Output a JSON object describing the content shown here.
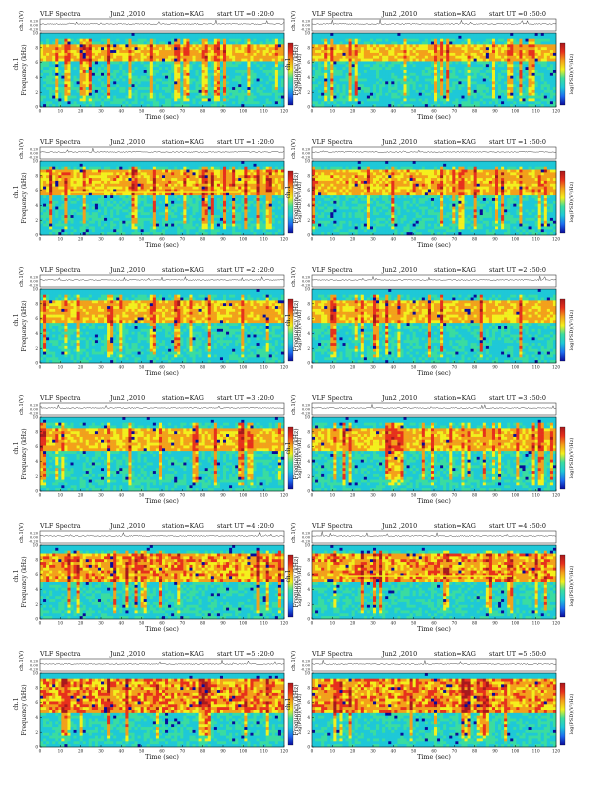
{
  "figure": {
    "panel_title_prefix": "VLF Spectra",
    "date": "Jun2 ,2010",
    "station": "station=KAG",
    "xlabel": "Time  (sec)",
    "ylabel_top": "ch.1(V)",
    "ylabel_spec_line1": "ch.1",
    "ylabel_spec_line2": "Frequency  (kHz)",
    "colorbar_label": "log(PSD)(V²/Hz)"
  },
  "colors": {
    "background": "#ffffff",
    "ink": "#111111",
    "spectrogram_scale": [
      "#0a0a9a",
      "#1e6cf0",
      "#1ec8d8",
      "#3adca0",
      "#f4f01c",
      "#f4a01a",
      "#e8301c",
      "#a8181c"
    ],
    "band_top": "#2fd8d8"
  },
  "chart_data": [
    {
      "type": "heatmap",
      "title": "VLF Spectra",
      "start_ut": "start  UT =0 :20:0",
      "x": {
        "label": "Time  (sec)",
        "range": [
          0,
          120
        ],
        "ticks": [
          0,
          10,
          20,
          30,
          40,
          50,
          60,
          70,
          80,
          90,
          100,
          110,
          120
        ]
      },
      "y": {
        "label": "Frequency  (kHz)",
        "range": [
          0,
          10
        ],
        "ticks": [
          0,
          2,
          4,
          6,
          8,
          10
        ]
      },
      "top_trace": {
        "label": "ch.1(V)",
        "ticks": [
          "0.20",
          "0.00",
          "-0.20"
        ]
      },
      "emission_band_khz": [
        6,
        8.5
      ],
      "intensity": 0.55,
      "has_line": false
    },
    {
      "type": "heatmap",
      "title": "VLF Spectra",
      "start_ut": "start  UT =0 :50:0",
      "x": {
        "label": "Time  (sec)",
        "range": [
          0,
          120
        ],
        "ticks": [
          0,
          10,
          20,
          30,
          40,
          50,
          60,
          70,
          80,
          90,
          100,
          110,
          120
        ]
      },
      "y": {
        "label": "Frequency  (kHz)",
        "range": [
          0,
          10
        ],
        "ticks": [
          0,
          2,
          4,
          6,
          8,
          10
        ]
      },
      "top_trace": {
        "label": "ch.1(V)",
        "ticks": [
          "0.20",
          "0.00",
          "-0.20"
        ]
      },
      "emission_band_khz": [
        6,
        8.5
      ],
      "intensity": 0.5,
      "has_line": false
    },
    {
      "type": "heatmap",
      "title": "VLF Spectra",
      "start_ut": "start  UT =1 :20:0",
      "x": {
        "label": "Time  (sec)",
        "range": [
          0,
          120
        ],
        "ticks": [
          0,
          10,
          20,
          30,
          40,
          50,
          60,
          70,
          80,
          90,
          100,
          110,
          120
        ]
      },
      "y": {
        "label": "Frequency  (kHz)",
        "range": [
          0,
          10
        ],
        "ticks": [
          0,
          2,
          4,
          6,
          8,
          10
        ]
      },
      "top_trace": {
        "label": "ch.1(V)",
        "ticks": [
          "0.20",
          "0.00",
          "-0.20"
        ]
      },
      "emission_band_khz": [
        5.5,
        9
      ],
      "intensity": 0.6,
      "has_line": true
    },
    {
      "type": "heatmap",
      "title": "VLF Spectra",
      "start_ut": "start  UT =1 :50:0",
      "x": {
        "label": "Time  (sec)",
        "range": [
          0,
          120
        ],
        "ticks": [
          0,
          10,
          20,
          30,
          40,
          50,
          60,
          70,
          80,
          90,
          100,
          110,
          120
        ]
      },
      "y": {
        "label": "Frequency  (kHz)",
        "range": [
          0,
          10
        ],
        "ticks": [
          0,
          2,
          4,
          6,
          8,
          10
        ]
      },
      "top_trace": {
        "label": "ch.1(V)",
        "ticks": [
          "0.20",
          "0.00",
          "-0.20"
        ]
      },
      "emission_band_khz": [
        5.5,
        9
      ],
      "intensity": 0.6,
      "has_line": false
    },
    {
      "type": "heatmap",
      "title": "VLF Spectra",
      "start_ut": "start  UT =2 :20:0",
      "x": {
        "label": "Time  (sec)",
        "range": [
          0,
          120
        ],
        "ticks": [
          0,
          10,
          20,
          30,
          40,
          50,
          60,
          70,
          80,
          90,
          100,
          110,
          120
        ]
      },
      "y": {
        "label": "Frequency  (kHz)",
        "range": [
          0,
          10
        ],
        "ticks": [
          0,
          2,
          4,
          6,
          8,
          10
        ]
      },
      "top_trace": {
        "label": "ch.1(V)",
        "ticks": [
          "0.20",
          "0.00",
          "-0.20"
        ]
      },
      "emission_band_khz": [
        5.5,
        8.5
      ],
      "intensity": 0.55,
      "has_line": false
    },
    {
      "type": "heatmap",
      "title": "VLF Spectra",
      "start_ut": "start  UT =2 :50:0",
      "x": {
        "label": "Time  (sec)",
        "range": [
          0,
          120
        ],
        "ticks": [
          0,
          10,
          20,
          30,
          40,
          50,
          60,
          70,
          80,
          90,
          100,
          110,
          120
        ]
      },
      "y": {
        "label": "Frequency  (kHz)",
        "range": [
          0,
          10
        ],
        "ticks": [
          0,
          2,
          4,
          6,
          8,
          10
        ]
      },
      "top_trace": {
        "label": "ch.1(V)",
        "ticks": [
          "0.20",
          "0.00",
          "-0.20"
        ]
      },
      "emission_band_khz": [
        5.5,
        8.5
      ],
      "intensity": 0.55,
      "has_line": false
    },
    {
      "type": "heatmap",
      "title": "VLF Spectra",
      "start_ut": "start  UT =3 :20:0",
      "x": {
        "label": "Time  (sec)",
        "range": [
          0,
          120
        ],
        "ticks": [
          0,
          10,
          20,
          30,
          40,
          50,
          60,
          70,
          80,
          90,
          100,
          110,
          120
        ]
      },
      "y": {
        "label": "Frequency  (kHz)",
        "range": [
          0,
          10
        ],
        "ticks": [
          0,
          2,
          4,
          6,
          8,
          10
        ]
      },
      "top_trace": {
        "label": "ch.1(V)",
        "ticks": [
          "0.20",
          "0.00",
          "-0.20"
        ]
      },
      "emission_band_khz": [
        5.5,
        8.5
      ],
      "intensity": 0.55,
      "has_line": false
    },
    {
      "type": "heatmap",
      "title": "VLF Spectra",
      "start_ut": "start  UT =3 :50:0",
      "x": {
        "label": "Time  (sec)",
        "range": [
          0,
          120
        ],
        "ticks": [
          0,
          10,
          20,
          30,
          40,
          50,
          60,
          70,
          80,
          90,
          100,
          110,
          120
        ]
      },
      "y": {
        "label": "Frequency  (kHz)",
        "range": [
          0,
          10
        ],
        "ticks": [
          0,
          2,
          4,
          6,
          8,
          10
        ]
      },
      "top_trace": {
        "label": "ch.1(V)",
        "ticks": [
          "0.20",
          "0.00",
          "-0.20"
        ]
      },
      "emission_band_khz": [
        5.5,
        8.5
      ],
      "intensity": 0.55,
      "has_line": false
    },
    {
      "type": "heatmap",
      "title": "VLF Spectra",
      "start_ut": "start  UT =4 :20:0",
      "x": {
        "label": "Time  (sec)",
        "range": [
          0,
          120
        ],
        "ticks": [
          0,
          10,
          20,
          30,
          40,
          50,
          60,
          70,
          80,
          90,
          100,
          110,
          120
        ]
      },
      "y": {
        "label": "Frequency  (kHz)",
        "range": [
          0,
          10
        ],
        "ticks": [
          0,
          2,
          4,
          6,
          8,
          10
        ]
      },
      "top_trace": {
        "label": "ch.1(V)",
        "ticks": [
          "0.20",
          "0.00",
          "-0.20"
        ]
      },
      "emission_band_khz": [
        5,
        9
      ],
      "intensity": 0.7,
      "has_line": false
    },
    {
      "type": "heatmap",
      "title": "VLF Spectra",
      "start_ut": "start  UT =4 :50:0",
      "x": {
        "label": "Time  (sec)",
        "range": [
          0,
          120
        ],
        "ticks": [
          0,
          10,
          20,
          30,
          40,
          50,
          60,
          70,
          80,
          90,
          100,
          110,
          120
        ]
      },
      "y": {
        "label": "Frequency  (kHz)",
        "range": [
          0,
          10
        ],
        "ticks": [
          0,
          2,
          4,
          6,
          8,
          10
        ]
      },
      "top_trace": {
        "label": "ch.1(V)",
        "ticks": [
          "0.20",
          "0.00",
          "-0.20"
        ]
      },
      "emission_band_khz": [
        5,
        9
      ],
      "intensity": 0.72,
      "has_line": true
    },
    {
      "type": "heatmap",
      "title": "VLF Spectra",
      "start_ut": "start  UT =5 :20:0",
      "x": {
        "label": "Time  (sec)",
        "range": [
          0,
          120
        ],
        "ticks": [
          0,
          10,
          20,
          30,
          40,
          50,
          60,
          70,
          80,
          90,
          100,
          110,
          120
        ]
      },
      "y": {
        "label": "Frequency  (kHz)",
        "range": [
          0,
          10
        ],
        "ticks": [
          0,
          2,
          4,
          6,
          8,
          10
        ]
      },
      "top_trace": {
        "label": "ch.1(V)",
        "ticks": [
          "0.20",
          "0.00",
          "-0.20"
        ]
      },
      "emission_band_khz": [
        4.5,
        9.5
      ],
      "intensity": 0.8,
      "has_line": false
    },
    {
      "type": "heatmap",
      "title": "VLF Spectra",
      "start_ut": "start  UT =5 :50:0",
      "x": {
        "label": "Time  (sec)",
        "range": [
          0,
          120
        ],
        "ticks": [
          0,
          10,
          20,
          30,
          40,
          50,
          60,
          70,
          80,
          90,
          100,
          110,
          120
        ]
      },
      "y": {
        "label": "Frequency  (kHz)",
        "range": [
          0,
          10
        ],
        "ticks": [
          0,
          2,
          4,
          6,
          8,
          10
        ]
      },
      "top_trace": {
        "label": "ch.1(V)",
        "ticks": [
          "0.20",
          "0.00",
          "-0.20"
        ]
      },
      "emission_band_khz": [
        4.5,
        9.5
      ],
      "intensity": 0.8,
      "has_line": false
    }
  ]
}
